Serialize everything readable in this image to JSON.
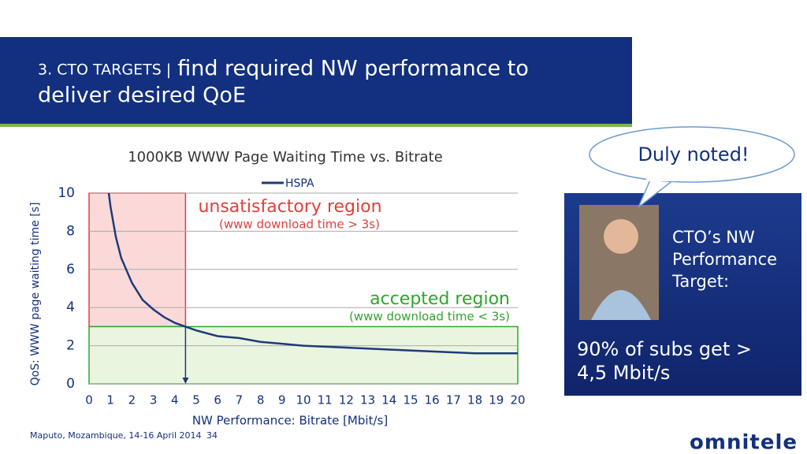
{
  "header": {
    "prefix": "3. CTO TARGETS |",
    "title": [
      "find required NW performance to",
      "deliver desired QoE"
    ]
  },
  "chart_data": {
    "type": "line",
    "title": "1000KB WWW Page Waiting Time vs. Bitrate",
    "x_label": "NW Performance: Bitrate [Mbit/s]",
    "y_label": "QoS: WWW page waiting time [s]",
    "xlim": [
      0,
      20
    ],
    "ylim": [
      0,
      10
    ],
    "xticks": [
      0,
      1,
      2,
      3,
      4,
      5,
      6,
      7,
      8,
      9,
      10,
      11,
      12,
      13,
      14,
      15,
      16,
      17,
      18,
      19,
      20
    ],
    "yticks": [
      0,
      2,
      4,
      6,
      8,
      10
    ],
    "grid": true,
    "series": [
      {
        "name": "HSPA",
        "color": "#1f3a78",
        "x": [
          0.92,
          1,
          1.25,
          1.5,
          2,
          2.5,
          3,
          3.5,
          4,
          4.5,
          5,
          6,
          7,
          8,
          9,
          10,
          12,
          14,
          16,
          18,
          20
        ],
        "values": [
          10,
          9.3,
          7.7,
          6.6,
          5.3,
          4.4,
          3.9,
          3.5,
          3.2,
          3.0,
          2.8,
          2.5,
          2.4,
          2.2,
          2.1,
          2.0,
          1.9,
          1.8,
          1.7,
          1.6,
          1.6
        ]
      }
    ],
    "regions": [
      {
        "label": "unsatisfactory region",
        "note": "(www download time > 3s)",
        "x": [
          0,
          4.5
        ],
        "y": [
          3,
          10
        ],
        "color": "#e0403a",
        "fill": "#fbd9d9"
      },
      {
        "label": "accepted region",
        "note": "(www download time < 3s)",
        "x": [
          0,
          20
        ],
        "y": [
          0,
          3
        ],
        "color": "#2ea52e",
        "fill": "#eaf5e0"
      }
    ],
    "threshold": {
      "x": 4.5,
      "y": 3
    }
  },
  "callout": "Duly noted!",
  "panel": {
    "caption": [
      "CTO’s NW",
      "Performance",
      "Target:"
    ],
    "target": [
      "90% of subs get >",
      "4,5 Mbit/s"
    ]
  },
  "footer": {
    "location": "Maputo, Mozambique, 14-16 April 2014",
    "page": "34"
  },
  "logo": "omnitele"
}
